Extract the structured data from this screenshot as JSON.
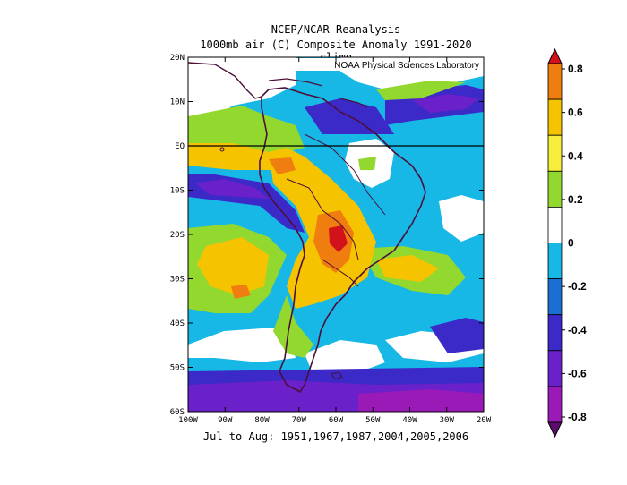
{
  "header": {
    "title": "NCEP/NCAR Reanalysis",
    "subtitle": "1000mb air (C) Composite Anomaly 1991-2020 climo"
  },
  "credit": "NOAA Physical Sciences Laboratory",
  "footer": "Jul to Aug: 1951,1967,1987,2004,2005,2006",
  "map": {
    "lon_range": [
      -100,
      -20
    ],
    "lat_range": [
      -60,
      20
    ],
    "lon_ticks": [
      "100W",
      "90W",
      "80W",
      "70W",
      "60W",
      "50W",
      "40W",
      "30W",
      "20W"
    ],
    "lat_ticks": [
      "20N",
      "10N",
      "EQ",
      "10S",
      "20S",
      "30S",
      "40S",
      "50S",
      "60S"
    ]
  },
  "colorbar": {
    "labels": [
      "0.8",
      "0.6",
      "0.4",
      "0.2",
      "0",
      "-0.2",
      "-0.4",
      "-0.6",
      "-0.8"
    ],
    "colors": [
      "#d1121b",
      "#f07d0f",
      "#f5c300",
      "#f7ee3c",
      "#93d82f",
      "#ffffff",
      "#17b7e6",
      "#1a6fd1",
      "#3b29c8",
      "#6a21c9",
      "#9a1ab8",
      "#5b0c6b"
    ]
  }
}
